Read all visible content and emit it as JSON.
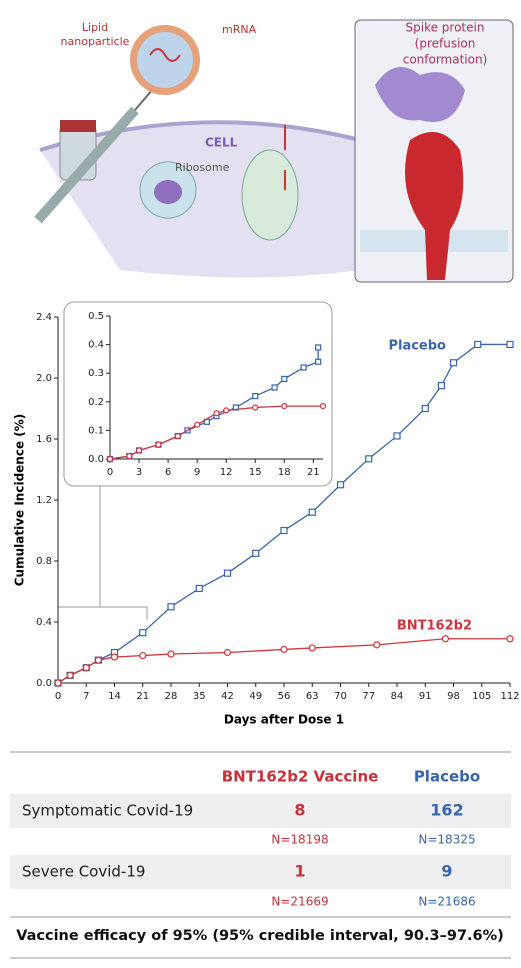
{
  "illustration": {
    "lipid_nanoparticle": [
      "Lipid",
      "nanoparticle"
    ],
    "mrna": "mRNA",
    "cell": "CELL",
    "ribosome": "Ribosome",
    "spike_protein": [
      "Spike protein",
      "(prefusion",
      "conformation)"
    ]
  },
  "chart_data": [
    {
      "type": "line",
      "x_label": "Days after Dose 1",
      "y_label": "Cumulative Incidence (%)",
      "xlim": [
        0,
        112
      ],
      "xticks": [
        0,
        7,
        14,
        21,
        28,
        35,
        42,
        49,
        56,
        63,
        70,
        77,
        84,
        91,
        98,
        105,
        112
      ],
      "ylim": [
        0,
        2.4
      ],
      "yticks": [
        {
          "value": 0,
          "label": "0.0"
        },
        0.4,
        0.8,
        1.2,
        1.6,
        {
          "value": 2,
          "label": "2.0"
        },
        2.4
      ],
      "series": [
        {
          "name": "Placebo",
          "color": "#3a64ae",
          "marker": "square",
          "x": [
            0,
            3,
            7,
            10,
            14,
            21,
            28,
            35,
            42,
            49,
            56,
            63,
            70,
            77,
            84,
            91,
            95,
            98,
            104,
            112
          ],
          "values": [
            0,
            0.05,
            0.1,
            0.15,
            0.2,
            0.33,
            0.5,
            0.62,
            0.72,
            0.85,
            1.0,
            1.12,
            1.3,
            1.47,
            1.62,
            1.8,
            1.95,
            2.1,
            2.22,
            2.22
          ]
        },
        {
          "name": "BNT162b2",
          "color": "#d1353b",
          "marker": "circle",
          "x": [
            0,
            3,
            7,
            10,
            14,
            21,
            28,
            42,
            56,
            63,
            79,
            96,
            112
          ],
          "values": [
            0,
            0.05,
            0.1,
            0.15,
            0.17,
            0.18,
            0.19,
            0.2,
            0.22,
            0.23,
            0.25,
            0.29,
            0.29
          ]
        }
      ]
    },
    {
      "type": "line",
      "xlim": [
        0,
        22
      ],
      "xticks": [
        0,
        3,
        6,
        9,
        12,
        15,
        18,
        21
      ],
      "ylim": [
        0,
        0.5
      ],
      "yticks": [
        {
          "value": 0,
          "label": "0.0"
        },
        0.1,
        0.2,
        0.3,
        0.4,
        0.5
      ],
      "series": [
        {
          "name": "Placebo",
          "color": "#3a64ae",
          "marker": "square",
          "x": [
            0,
            2,
            3,
            5,
            7,
            8,
            10,
            11,
            13,
            15,
            17,
            18,
            20,
            21.5,
            21.5
          ],
          "values": [
            0,
            0.01,
            0.03,
            0.05,
            0.08,
            0.1,
            0.13,
            0.15,
            0.18,
            0.22,
            0.25,
            0.28,
            0.32,
            0.34,
            0.39
          ]
        },
        {
          "name": "BNT162b2",
          "color": "#d1353b",
          "marker": "circle",
          "x": [
            0,
            2,
            3,
            5,
            7,
            9,
            11,
            12,
            15,
            18,
            22
          ],
          "values": [
            0,
            0.01,
            0.03,
            0.05,
            0.08,
            0.12,
            0.16,
            0.17,
            0.18,
            0.185,
            0.185
          ]
        }
      ]
    }
  ],
  "table": {
    "columns": [
      "BNT162b2 Vaccine",
      "Placebo"
    ],
    "rows": [
      {
        "label": "Symptomatic Covid-19",
        "values": [
          8,
          162
        ],
        "n": [
          "N=18198",
          "N=18325"
        ]
      },
      {
        "label": "Severe Covid-19",
        "values": [
          1,
          9
        ],
        "n": [
          "N=21669",
          "N=21686"
        ]
      }
    ],
    "footer": "Vaccine efficacy of 95% (95% credible interval, 90.3–97.6%)"
  }
}
